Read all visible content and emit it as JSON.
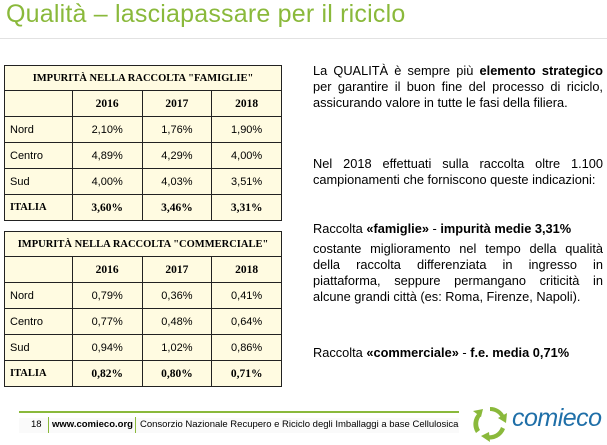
{
  "title": "Qualità – lasciapassare per il riciclo",
  "tables": [
    {
      "header": "IMPURITÀ NELLA RACCOLTA \"FAMIGLIE\"",
      "columns": [
        "2016",
        "2017",
        "2018"
      ],
      "rows": [
        {
          "region": "Nord",
          "values": [
            "2,10%",
            "1,76%",
            "1,90%"
          ]
        },
        {
          "region": "Centro",
          "values": [
            "4,89%",
            "4,29%",
            "4,00%"
          ]
        },
        {
          "region": "Sud",
          "values": [
            "4,00%",
            "4,03%",
            "3,51%"
          ]
        }
      ],
      "total": {
        "region": "ITALIA",
        "values": [
          "3,60%",
          "3,46%",
          "3,31%"
        ]
      }
    },
    {
      "header": "IMPURITÀ NELLA RACCOLTA \"COMMERCIALE\"",
      "columns": [
        "2016",
        "2017",
        "2018"
      ],
      "rows": [
        {
          "region": "Nord",
          "values": [
            "0,79%",
            "0,36%",
            "0,41%"
          ]
        },
        {
          "region": "Centro",
          "values": [
            "0,77%",
            "0,48%",
            "0,64%"
          ]
        },
        {
          "region": "Sud",
          "values": [
            "0,94%",
            "1,02%",
            "0,86%"
          ]
        }
      ],
      "total": {
        "region": "ITALIA",
        "values": [
          "0,82%",
          "0,80%",
          "0,71%"
        ]
      }
    }
  ],
  "text": {
    "p1_a": "La QUALITÀ è sempre più ",
    "p1_b": "elemento strategico",
    "p1_c": " per garantire il buon fine del processo di riciclo, assicurando valore in tutte le fasi della filiera.",
    "p2": "Nel 2018 effettuati sulla raccolta oltre 1.100 campionamenti che forniscono queste indicazioni:",
    "p3_a": "Raccolta ",
    "p3_b": "«famiglie»",
    "p3_c": " - ",
    "p3_d": "impurità medie 3,31%",
    "p4": "costante miglioramento nel tempo della qualità della raccolta differenziata in ingresso in piattaforma, seppure permangano criticità in alcune grandi città (es: Roma, Firenze, Napoli).",
    "p5_a": "Raccolta ",
    "p5_b": "«commerciale»",
    "p5_c": " - ",
    "p5_d": "f.e. media 0,71%"
  },
  "footer": {
    "page": "18",
    "url": "www.comieco.org",
    "description": "Consorzio Nazionale Recupero e Riciclo degli Imballaggi a base Cellulosica"
  },
  "logo": {
    "word": "comieco",
    "icon": "recycle-arrows-icon"
  },
  "colors": {
    "title": "#8ab93b",
    "table_bg": "#fffbe1",
    "logo_blue": "#1f6fa8",
    "accent_green": "#8ab93b"
  }
}
